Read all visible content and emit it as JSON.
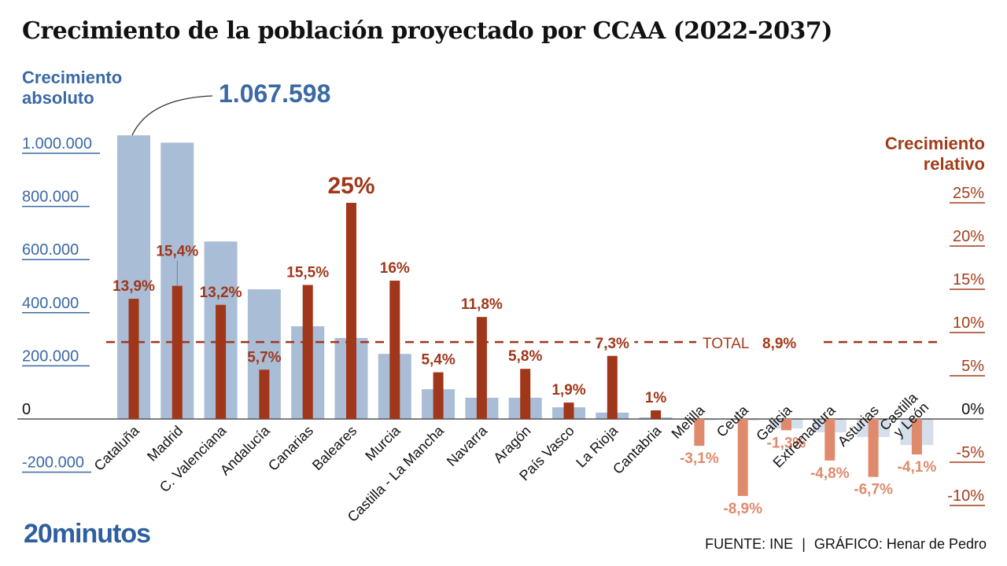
{
  "title": "Crecimiento de la población proyectado por CCAA (2022-2037)",
  "left_axis_title": [
    "Crecimiento",
    "absoluto"
  ],
  "right_axis_title": [
    "Crecimiento",
    "relativo"
  ],
  "max_annotation": "1.067.598",
  "total_label": "TOTAL",
  "total_value_label": "8,9%",
  "logo": "20minutos",
  "footer": {
    "source": "FUENTE: INE",
    "separator": "|",
    "credit": "GRÁFICO: Henar de Pedro"
  },
  "colors": {
    "absolute_bar": "#a9bdd6",
    "absolute_bar_negative": "#d5dfec",
    "relative_bar_positive": "#a0361a",
    "relative_bar_negative": "#df8a6c",
    "left_axis": "#3a69a4",
    "right_axis": "#a33c1a"
  },
  "chart_data": {
    "type": "bar",
    "title": "Crecimiento de la población proyectado por CCAA (2022-2037)",
    "categories": [
      "Cataluña",
      "Madrid",
      "C. Valenciana",
      "Andalucía",
      "Canarias",
      "Baleares",
      "Murcia",
      "Castilla - La Mancha",
      "Navarra",
      "Aragón",
      "País Vasco",
      "La Rioja",
      "Cantabria",
      "Melilla",
      "Ceuta",
      "Galicia",
      "Extremadura",
      "Asturias",
      "Castilla y León"
    ],
    "series": [
      {
        "name": "Crecimiento absoluto",
        "axis": "left",
        "values": [
          1067598,
          1040000,
          668000,
          488000,
          349000,
          305000,
          245000,
          112000,
          80000,
          80000,
          44000,
          24000,
          6000,
          -2000,
          -5000,
          -36000,
          -50000,
          -68000,
          -98000
        ]
      },
      {
        "name": "Crecimiento relativo",
        "axis": "right",
        "unit": "%",
        "values": [
          13.9,
          15.4,
          13.2,
          5.7,
          15.5,
          25,
          16,
          5.4,
          11.8,
          5.8,
          1.9,
          7.3,
          1,
          -3.1,
          -8.9,
          -1.3,
          -4.8,
          -6.7,
          -4.1
        ],
        "labels": [
          "13,9%",
          "15,4%",
          "13,2%",
          "5,7%",
          "15,5%",
          "25%",
          "16%",
          "5,4%",
          "11,8%",
          "5,8%",
          "1,9%",
          "7,3%",
          "1%",
          "-3,1%",
          "-8,9%",
          "-1,3%",
          "-4,8%",
          "-6,7%",
          "-4,1%"
        ]
      }
    ],
    "reference_line": {
      "name": "TOTAL",
      "value": 8.9,
      "axis": "right",
      "style": "dashed"
    },
    "left_axis": {
      "ylim": [
        -200000,
        1000000
      ],
      "ticks": [
        -200000,
        0,
        200000,
        400000,
        600000,
        800000,
        1000000
      ],
      "tick_labels": [
        "-200.000",
        "0",
        "200.000",
        "400.000",
        "600.000",
        "800.000",
        "1.000.000"
      ]
    },
    "right_axis": {
      "ylim": [
        -10,
        25
      ],
      "ticks": [
        -10,
        -5,
        0,
        5,
        10,
        15,
        20,
        25
      ],
      "tick_labels": [
        "-10%",
        "-5%",
        "0%",
        "5%",
        "10%",
        "15%",
        "20%",
        "25%"
      ]
    },
    "xlabel": "",
    "grid": false
  }
}
